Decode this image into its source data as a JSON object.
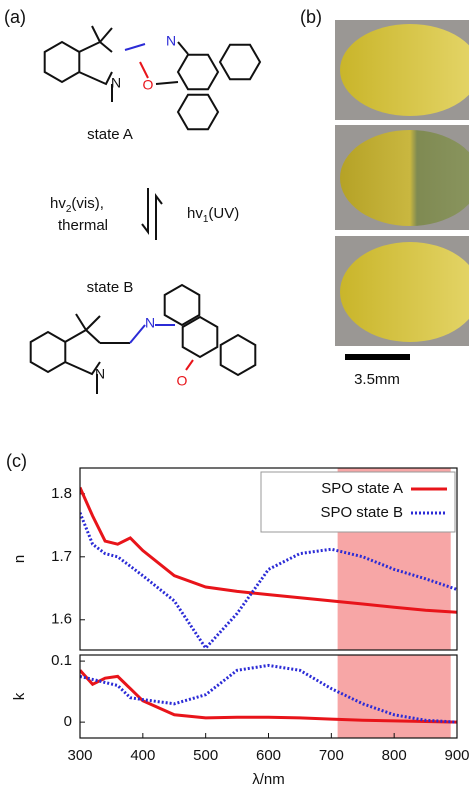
{
  "panels": {
    "a": "(a)",
    "b": "(b)",
    "c": "(c)"
  },
  "scheme": {
    "state_a": "state A",
    "state_b": "state B",
    "reverse": {
      "text": "hv",
      "sub": "2",
      "rest": "(vis),",
      "line2": "thermal"
    },
    "forward": {
      "text": "hv",
      "sub": "1",
      "rest": "(UV)"
    },
    "atoms": {
      "a_n_indoline": "N",
      "a_n_oxazine": "N",
      "a_o": "O",
      "b_n_indoline": "N",
      "b_n_imine": "N",
      "b_o": "O"
    }
  },
  "photos": {
    "scale_bar": "3.5mm"
  },
  "chart_data": [
    {
      "type": "line",
      "ylabel": "n",
      "x": [
        300,
        320,
        340,
        360,
        380,
        400,
        450,
        500,
        550,
        600,
        650,
        700,
        750,
        800,
        850,
        900
      ],
      "series": [
        {
          "name": "SPO state A",
          "color": "#e8141a",
          "style": "solid",
          "values": [
            1.81,
            1.765,
            1.725,
            1.72,
            1.73,
            1.71,
            1.67,
            1.652,
            1.645,
            1.64,
            1.635,
            1.63,
            1.625,
            1.62,
            1.615,
            1.612
          ]
        },
        {
          "name": "SPO state B",
          "color": "#2b2bd6",
          "style": "dotted",
          "values": [
            1.77,
            1.72,
            1.705,
            1.7,
            1.685,
            1.67,
            1.63,
            1.555,
            1.61,
            1.68,
            1.705,
            1.712,
            1.7,
            1.68,
            1.665,
            1.648
          ]
        }
      ],
      "xlim": [
        300,
        900
      ],
      "ylim": [
        1.552,
        1.841
      ],
      "yticks": [
        1.6,
        1.7,
        1.8
      ],
      "highlight": [
        710,
        890
      ],
      "highlight_color": "#f7a6a6",
      "legend": "upper right"
    },
    {
      "type": "line",
      "ylabel": "k",
      "xlabel": "λ/nm",
      "x": [
        300,
        320,
        340,
        360,
        380,
        400,
        450,
        500,
        550,
        600,
        650,
        700,
        750,
        800,
        850,
        900
      ],
      "series": [
        {
          "color": "#e8141a",
          "style": "solid",
          "values": [
            0.085,
            0.062,
            0.072,
            0.075,
            0.055,
            0.035,
            0.012,
            0.007,
            0.008,
            0.008,
            0.007,
            0.005,
            0.003,
            0.002,
            0.001,
            0
          ]
        },
        {
          "color": "#2b2bd6",
          "style": "dotted",
          "values": [
            0.075,
            0.07,
            0.065,
            0.06,
            0.04,
            0.037,
            0.03,
            0.045,
            0.085,
            0.093,
            0.085,
            0.055,
            0.03,
            0.012,
            0.003,
            0
          ]
        }
      ],
      "xlim": [
        300,
        900
      ],
      "ylim": [
        -0.026,
        0.11
      ],
      "xticks": [
        300,
        400,
        500,
        600,
        700,
        800,
        900
      ],
      "yticks": [
        0,
        0.1
      ],
      "highlight": [
        710,
        890
      ],
      "highlight_color": "#f7a6a6"
    }
  ]
}
